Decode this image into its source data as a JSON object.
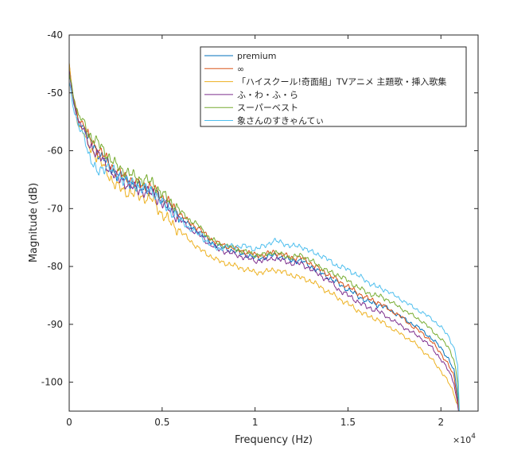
{
  "chart_data": {
    "type": "line",
    "title": "",
    "xlabel": "Frequency (Hz)",
    "ylabel": "Magnitude (dB)",
    "xlim": [
      0,
      22000
    ],
    "ylim": [
      -105,
      -40
    ],
    "x_ticks": [
      0,
      5000,
      10000,
      15000,
      20000
    ],
    "x_tick_labels": [
      "0",
      "0.5",
      "1",
      "1.5",
      "2"
    ],
    "x_exponent_label": "×10",
    "x_exponent_power": "4",
    "y_ticks": [
      -100,
      -90,
      -80,
      -70,
      -60,
      -50,
      -40
    ],
    "y_tick_labels": [
      "-100",
      "-90",
      "-80",
      "-70",
      "-60",
      "-50",
      "-40"
    ],
    "grid": false,
    "legend_position": "top-right",
    "x": [
      0,
      200,
      500,
      800,
      1000,
      1500,
      2000,
      2500,
      3000,
      3500,
      4000,
      4500,
      5000,
      5500,
      6000,
      6500,
      7000,
      7500,
      8000,
      8500,
      9000,
      9500,
      10000,
      10500,
      11000,
      11500,
      12000,
      12500,
      13000,
      13500,
      14000,
      14500,
      15000,
      15500,
      16000,
      16500,
      17000,
      17500,
      18000,
      18500,
      19000,
      19500,
      20000,
      20400,
      20700,
      20900,
      21000
    ],
    "series": [
      {
        "name": "premium",
        "color": "#0072BD",
        "values": [
          -47,
          -51,
          -55,
          -56,
          -58,
          -60,
          -62,
          -64,
          -65,
          -66,
          -66.5,
          -67,
          -68.5,
          -70,
          -71.5,
          -73,
          -74,
          -75.5,
          -76.5,
          -77,
          -77.5,
          -78,
          -78.5,
          -78.5,
          -78,
          -78.5,
          -79,
          -79,
          -80,
          -81,
          -82,
          -83,
          -84,
          -85,
          -86,
          -86.5,
          -87,
          -88,
          -89,
          -90,
          -91,
          -92.5,
          -94,
          -96,
          -98,
          -102,
          -106
        ]
      },
      {
        "name": "∞",
        "color": "#D95319",
        "values": [
          -45.5,
          -50.5,
          -54.5,
          -55.5,
          -57.5,
          -59.5,
          -61.5,
          -63.5,
          -64.5,
          -65.5,
          -66,
          -66.5,
          -68,
          -69.5,
          -71,
          -72.5,
          -73.5,
          -75,
          -76,
          -76.5,
          -77,
          -77.5,
          -78,
          -78,
          -77.5,
          -78,
          -78.5,
          -78.5,
          -79.5,
          -80.5,
          -81.5,
          -82.5,
          -83.5,
          -84.5,
          -85.5,
          -86,
          -87,
          -88,
          -89,
          -90.5,
          -91.5,
          -93,
          -95,
          -97,
          -99,
          -103,
          -106
        ]
      },
      {
        "name": "「ハイスクール!奇面組」TVアニメ 主題歌・挿入歌集",
        "color": "#EDB120",
        "values": [
          -45,
          -51,
          -55.5,
          -57,
          -59,
          -61,
          -63.5,
          -66,
          -67,
          -67.5,
          -68,
          -68.5,
          -71,
          -72.5,
          -74,
          -75.5,
          -77,
          -78,
          -79,
          -79.5,
          -80,
          -80.5,
          -81,
          -81,
          -80.5,
          -81,
          -81.5,
          -82,
          -82.5,
          -83.5,
          -84.5,
          -85.5,
          -86.5,
          -87.5,
          -88.5,
          -89,
          -90,
          -91,
          -92,
          -93,
          -94.5,
          -96,
          -98,
          -100,
          -102,
          -104,
          -106
        ]
      },
      {
        "name": "ふ・わ・ふ・ら",
        "color": "#7E2F8E",
        "values": [
          -46,
          -51,
          -55,
          -56.5,
          -58.5,
          -60.5,
          -62.5,
          -64.5,
          -65.5,
          -66.5,
          -67,
          -67.5,
          -69,
          -70.5,
          -72,
          -73.5,
          -74.5,
          -76,
          -77,
          -77.5,
          -78,
          -78.5,
          -79,
          -79,
          -78.5,
          -79,
          -79.5,
          -79.5,
          -80.5,
          -81.5,
          -82.5,
          -84,
          -85,
          -86,
          -87,
          -87.5,
          -88.5,
          -89.5,
          -90.5,
          -91.5,
          -92.5,
          -94,
          -96,
          -98,
          -100,
          -104,
          -106
        ]
      },
      {
        "name": "スーパーベスト",
        "color": "#77AC30",
        "values": [
          -46.5,
          -50,
          -54,
          -55,
          -57,
          -58.5,
          -60.5,
          -62.5,
          -63.5,
          -64.5,
          -65,
          -65.5,
          -67.5,
          -69,
          -70.5,
          -72,
          -73,
          -75,
          -76,
          -76.5,
          -77,
          -77.5,
          -78,
          -78,
          -77.5,
          -78,
          -78.5,
          -78,
          -79,
          -80,
          -81,
          -81.5,
          -82.5,
          -83.5,
          -84.5,
          -85,
          -85.5,
          -86.5,
          -87.5,
          -88.5,
          -89.5,
          -91,
          -92.5,
          -94,
          -96,
          -100,
          -106
        ]
      },
      {
        "name": "象さんのすきゃんてぃ",
        "color": "#4DBEEE",
        "values": [
          -48,
          -52,
          -56,
          -57.5,
          -60,
          -64,
          -62.5,
          -64,
          -65,
          -66,
          -66.5,
          -67,
          -69,
          -70.5,
          -72,
          -73.5,
          -74.5,
          -76,
          -77,
          -76.5,
          -76.5,
          -76.5,
          -77,
          -76.5,
          -75.5,
          -76,
          -76.5,
          -76.5,
          -77.5,
          -78,
          -79,
          -80,
          -80.5,
          -81.5,
          -82.5,
          -83.5,
          -84,
          -85,
          -86,
          -87,
          -88,
          -89,
          -90.5,
          -92,
          -94,
          -97,
          -106
        ]
      }
    ]
  }
}
